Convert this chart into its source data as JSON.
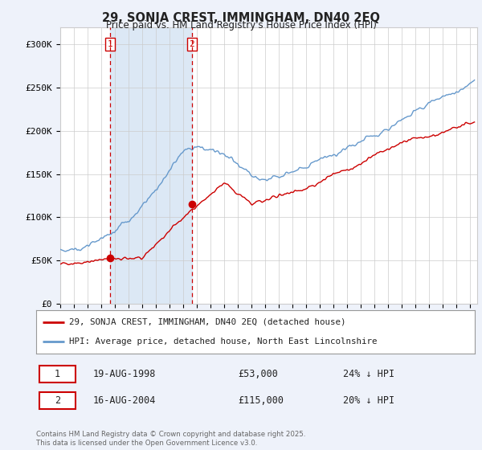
{
  "title": "29, SONJA CREST, IMMINGHAM, DN40 2EQ",
  "subtitle": "Price paid vs. HM Land Registry's House Price Index (HPI)",
  "ylabel_ticks": [
    "£0",
    "£50K",
    "£100K",
    "£150K",
    "£200K",
    "£250K",
    "£300K"
  ],
  "ytick_values": [
    0,
    50000,
    100000,
    150000,
    200000,
    250000,
    300000
  ],
  "ylim": [
    0,
    320000
  ],
  "xlim_start": 1995.0,
  "xlim_end": 2025.5,
  "background_color": "#eef2fa",
  "plot_bg_color": "#ffffff",
  "transaction1_date": "19-AUG-1998",
  "transaction1_price": 53000,
  "transaction1_hpi_diff": "24% ↓ HPI",
  "transaction2_date": "16-AUG-2004",
  "transaction2_price": 115000,
  "transaction2_hpi_diff": "20% ↓ HPI",
  "legend_label_red": "29, SONJA CREST, IMMINGHAM, DN40 2EQ (detached house)",
  "legend_label_blue": "HPI: Average price, detached house, North East Lincolnshire",
  "footer": "Contains HM Land Registry data © Crown copyright and database right 2025.\nThis data is licensed under the Open Government Licence v3.0.",
  "red_color": "#cc0000",
  "blue_color": "#6699cc",
  "vline_color": "#cc0000",
  "shaded_color": "#dce8f5",
  "grid_color": "#cccccc"
}
